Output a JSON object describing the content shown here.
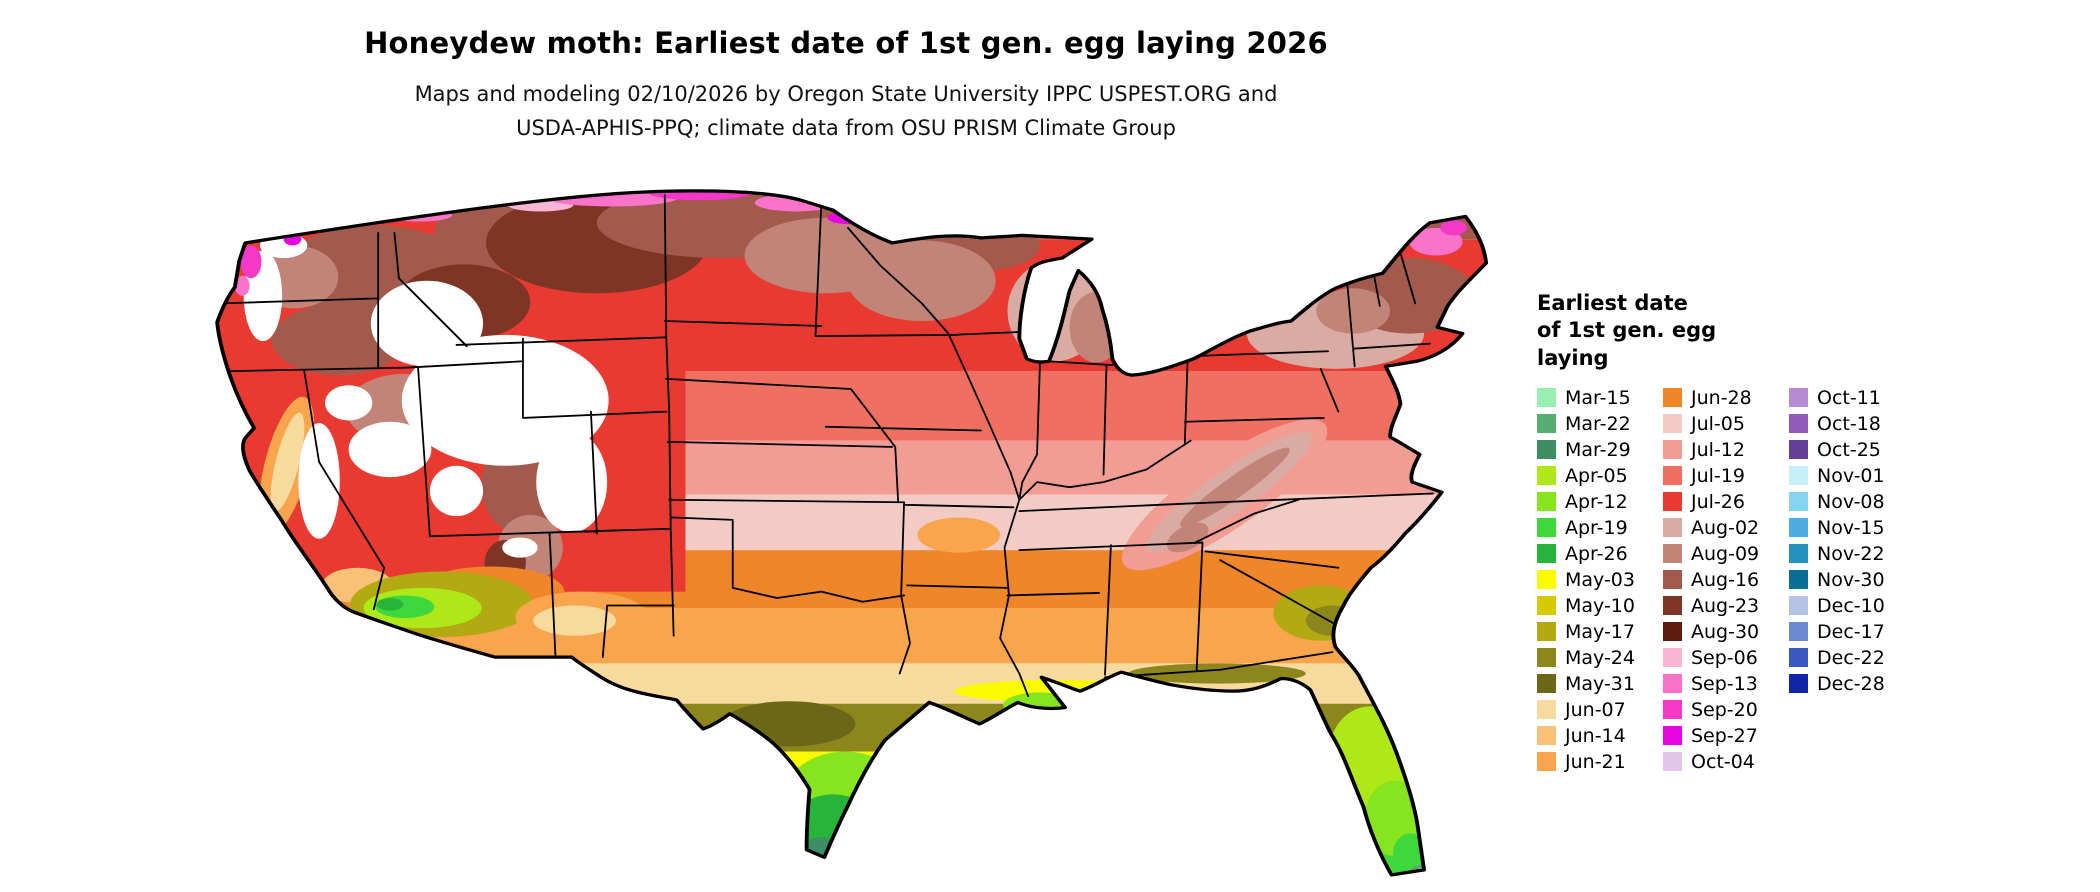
{
  "header": {
    "title": "Honeydew moth: Earliest date of 1st gen. egg laying 2026",
    "subtitle_line1": "Maps and modeling 02/10/2026 by Oregon State University IPPC USPEST.ORG and",
    "subtitle_line2": "USDA-APHIS-PPQ; climate data from OSU PRISM Climate Group"
  },
  "legend": {
    "title_lines": [
      "Earliest date",
      "of 1st gen. egg",
      "laying"
    ],
    "columns": [
      [
        {
          "label": "Mar-15",
          "color": "#98EFB0"
        },
        {
          "label": "Mar-22",
          "color": "#58AE72"
        },
        {
          "label": "Mar-29",
          "color": "#3D8E63"
        },
        {
          "label": "Apr-05",
          "color": "#AEE818"
        },
        {
          "label": "Apr-12",
          "color": "#86E51E"
        },
        {
          "label": "Apr-19",
          "color": "#3ED83C"
        },
        {
          "label": "Apr-26",
          "color": "#28B43A"
        },
        {
          "label": "May-03",
          "color": "#FBFB00"
        },
        {
          "label": "May-10",
          "color": "#D6CA00"
        },
        {
          "label": "May-17",
          "color": "#B3A912"
        },
        {
          "label": "May-24",
          "color": "#8C861C"
        },
        {
          "label": "May-31",
          "color": "#6C6717"
        },
        {
          "label": "Jun-07",
          "color": "#F7DA9E"
        },
        {
          "label": "Jun-14",
          "color": "#F9C177"
        },
        {
          "label": "Jun-21",
          "color": "#F9A54E"
        }
      ],
      [
        {
          "label": "Jun-28",
          "color": "#EF862A"
        },
        {
          "label": "Jul-05",
          "color": "#F2CCC4"
        },
        {
          "label": "Jul-12",
          "color": "#F29D94"
        },
        {
          "label": "Jul-19",
          "color": "#EF6F60"
        },
        {
          "label": "Jul-26",
          "color": "#E93A31"
        },
        {
          "label": "Aug-02",
          "color": "#DAABA2"
        },
        {
          "label": "Aug-09",
          "color": "#C28379"
        },
        {
          "label": "Aug-16",
          "color": "#A25A4C"
        },
        {
          "label": "Aug-23",
          "color": "#7E3526"
        },
        {
          "label": "Aug-30",
          "color": "#5C1C12"
        },
        {
          "label": "Sep-06",
          "color": "#F9B5D4"
        },
        {
          "label": "Sep-13",
          "color": "#F973CB"
        },
        {
          "label": "Sep-20",
          "color": "#F638C9"
        },
        {
          "label": "Sep-27",
          "color": "#E806E0"
        },
        {
          "label": "Oct-04",
          "color": "#E3C6EA"
        }
      ],
      [
        {
          "label": "Oct-11",
          "color": "#B68BD4"
        },
        {
          "label": "Oct-18",
          "color": "#8E5BBB"
        },
        {
          "label": "Oct-25",
          "color": "#653D9B"
        },
        {
          "label": "Nov-01",
          "color": "#C6EFF9"
        },
        {
          "label": "Nov-08",
          "color": "#84D4F2"
        },
        {
          "label": "Nov-15",
          "color": "#4BABE3"
        },
        {
          "label": "Nov-22",
          "color": "#2490BE"
        },
        {
          "label": "Nov-30",
          "color": "#096E95"
        },
        {
          "label": "Dec-10",
          "color": "#B4C3E3"
        },
        {
          "label": "Dec-17",
          "color": "#6C89D4"
        },
        {
          "label": "Dec-22",
          "color": "#3959C4"
        },
        {
          "label": "Dec-28",
          "color": "#1224A8"
        }
      ]
    ]
  },
  "map": {
    "no_data_color": "#ffffff",
    "outline_color": "#000000"
  }
}
